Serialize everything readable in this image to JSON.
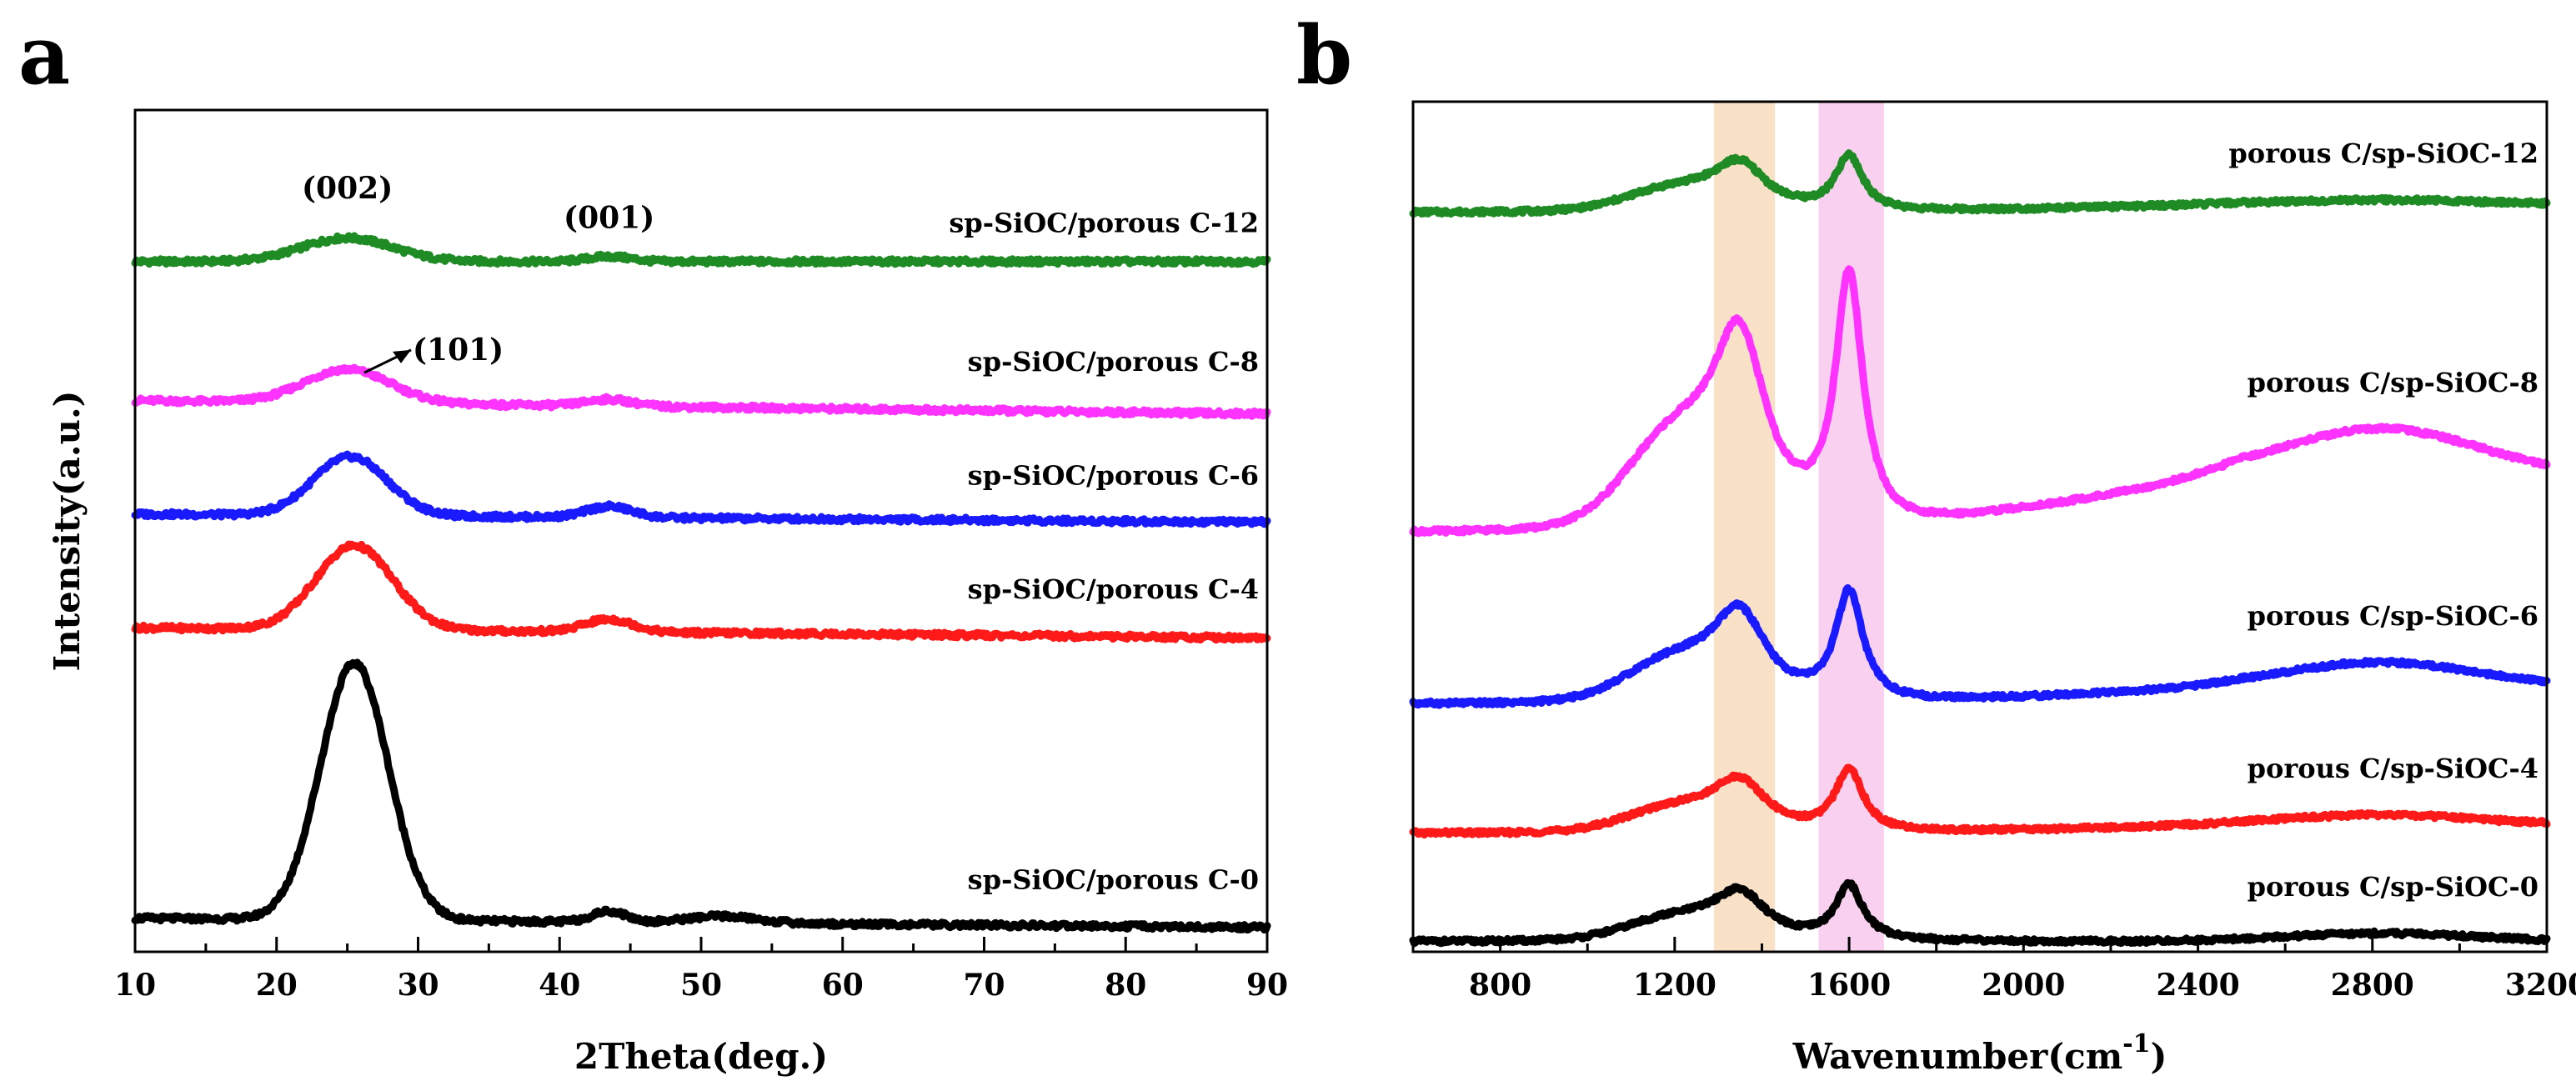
{
  "chart_data": [
    {
      "panel": "a",
      "type": "line",
      "xlabel": "2Theta(deg.)",
      "ylabel": "Intensity(a.u.)",
      "xlim": [
        10,
        90
      ],
      "xticks": [
        10,
        20,
        30,
        40,
        50,
        60,
        70,
        80,
        90
      ],
      "yticks": false,
      "legend": "inline labels at right end of each trace",
      "annotations": [
        {
          "id": "ann002",
          "text": "(002)",
          "x": 25,
          "series": "sp-SiOC/porous C-12"
        },
        {
          "id": "ann001",
          "text": "(001)",
          "x": 43.5,
          "series": "sp-SiOC/porous C-12"
        },
        {
          "id": "ann101",
          "text": "(101)",
          "x": 26,
          "series": "sp-SiOC/porous C-8",
          "arrow": true
        }
      ],
      "series": [
        {
          "name": "sp-SiOC/porous C-12",
          "color": "#1f8b24",
          "offset": 0.82,
          "peaks": [
            [
              25,
              0.028,
              3.2
            ],
            [
              43.5,
              0.006,
              1.5
            ]
          ],
          "slope": 0.0
        },
        {
          "name": "sp-SiOC/porous C-8",
          "color": "#ff33ff",
          "offset": 0.655,
          "peaks": [
            [
              25,
              0.04,
              3.0
            ],
            [
              43.5,
              0.008,
              1.6
            ]
          ],
          "slope": -0.0002
        },
        {
          "name": "sp-SiOC/porous C-6",
          "color": "#1a1aff",
          "offset": 0.52,
          "peaks": [
            [
              25.2,
              0.07,
              2.6
            ],
            [
              43.5,
              0.013,
              1.6
            ]
          ],
          "slope": -0.00012
        },
        {
          "name": "sp-SiOC/porous C-4",
          "color": "#ff1a1a",
          "offset": 0.385,
          "peaks": [
            [
              25.5,
              0.1,
              2.7
            ],
            [
              43.5,
              0.015,
              1.7
            ]
          ],
          "slope": -0.00015
        },
        {
          "name": "sp-SiOC/porous C-0",
          "color": "#000000",
          "offset": 0.04,
          "peaks": [
            [
              25.5,
              0.305,
              2.4
            ],
            [
              43.5,
              0.013,
              1.2
            ],
            [
              51.5,
              0.008,
              2.5
            ]
          ],
          "slope": -0.00014
        }
      ]
    },
    {
      "panel": "b",
      "type": "line",
      "xlabel": "Wavenumber(cm",
      "xlabel_sup": "-1",
      "xlabel_end": ")",
      "xlim": [
        600,
        3200
      ],
      "xticks": [
        800,
        1200,
        1600,
        2000,
        2400,
        2800,
        3200
      ],
      "yticks": false,
      "legend": "inline labels at right end of each trace",
      "bands": [
        {
          "name": "D band",
          "x": [
            1290,
            1430
          ],
          "color": "#f8dcbd"
        },
        {
          "name": "G band",
          "x": [
            1530,
            1680
          ],
          "color": "#f9c8ee"
        }
      ],
      "series": [
        {
          "name": "porous C/sp-SiOC-12",
          "color": "#1f8b24",
          "offset": 0.875,
          "D": 0.07,
          "G": 0.065,
          "twoD": 0.005,
          "baselineRise": 0.01
        },
        {
          "name": "porous C/sp-SiOC-8",
          "color": "#ff33ff",
          "offset": 0.49,
          "D": 0.28,
          "G": 0.3,
          "twoD": 0.055,
          "baselineRise": 0.07
        },
        {
          "name": "porous C/sp-SiOC-6",
          "color": "#1a1aff",
          "offset": 0.285,
          "D": 0.13,
          "G": 0.13,
          "twoD": 0.03,
          "baselineRise": 0.02
        },
        {
          "name": "porous C/sp-SiOC-4",
          "color": "#ff1a1a",
          "offset": 0.13,
          "D": 0.075,
          "G": 0.075,
          "twoD": 0.012,
          "baselineRise": 0.01
        },
        {
          "name": "porous C/sp-SiOC-0",
          "color": "#000000",
          "offset": 0.0,
          "D": 0.07,
          "G": 0.065,
          "twoD": 0.01,
          "baselineRise": 0.0
        }
      ]
    }
  ]
}
